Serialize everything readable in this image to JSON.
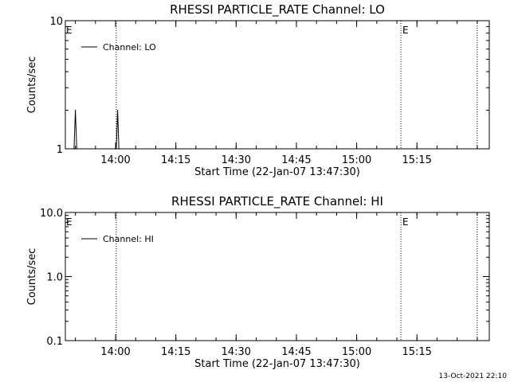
{
  "footer": {
    "timestamp": "13-Oct-2021 22:10"
  },
  "chart_data": [
    {
      "type": "line",
      "title": "RHESSI PARTICLE_RATE Channel: LO",
      "xlabel": "Start Time (22-Jan-07 13:47:30)",
      "ylabel": "Counts/sec",
      "y_scale": "log",
      "ylim": [
        1,
        10
      ],
      "y_ticks": [
        {
          "value": 1,
          "label": "1"
        },
        {
          "value": 10,
          "label": "10"
        }
      ],
      "xlim": [
        "13:47:30",
        "15:33:00"
      ],
      "x_ticks": [
        "14:00",
        "14:15",
        "14:30",
        "14:45",
        "15:00",
        "15:15"
      ],
      "legend": {
        "placement": "top-left",
        "entries": [
          "Channel: LO"
        ]
      },
      "series": [
        {
          "name": "Channel: LO",
          "color": "#000000",
          "x": [
            "13:49:20",
            "13:49:40",
            "13:50:00",
            "13:50:20",
            "13:50:40",
            "13:59:50",
            "14:00:10",
            "14:00:30",
            "14:00:50",
            "14:01:10"
          ],
          "y": [
            1,
            1,
            2,
            1,
            1,
            1,
            1,
            2,
            1,
            1
          ]
        }
      ],
      "vertical_lines": [
        {
          "x": "14:00:10",
          "style": "dotted"
        },
        {
          "x": "15:11:00",
          "style": "dotted",
          "label": "E"
        },
        {
          "x": "15:30:00",
          "style": "dotted"
        }
      ],
      "markers": [
        {
          "x": "13:47:30",
          "label": "E"
        }
      ]
    },
    {
      "type": "line",
      "title": "RHESSI PARTICLE_RATE Channel: HI",
      "xlabel": "Start Time (22-Jan-07 13:47:30)",
      "ylabel": "Counts/sec",
      "y_scale": "log",
      "ylim": [
        0.1,
        10
      ],
      "y_ticks": [
        {
          "value": 0.1,
          "label": "0.1"
        },
        {
          "value": 1,
          "label": "1.0"
        },
        {
          "value": 10,
          "label": "10.0"
        }
      ],
      "xlim": [
        "13:47:30",
        "15:33:00"
      ],
      "x_ticks": [
        "14:00",
        "14:15",
        "14:30",
        "14:45",
        "15:00",
        "15:15"
      ],
      "legend": {
        "placement": "top-left",
        "entries": [
          "Channel: HI"
        ]
      },
      "series": [
        {
          "name": "Channel: HI",
          "color": "#000000",
          "x": [],
          "y": []
        }
      ],
      "vertical_lines": [
        {
          "x": "14:00:10",
          "style": "dotted"
        },
        {
          "x": "15:11:00",
          "style": "dotted",
          "label": "E"
        },
        {
          "x": "15:30:00",
          "style": "dotted"
        }
      ],
      "markers": [
        {
          "x": "13:47:30",
          "label": "E"
        }
      ]
    }
  ]
}
